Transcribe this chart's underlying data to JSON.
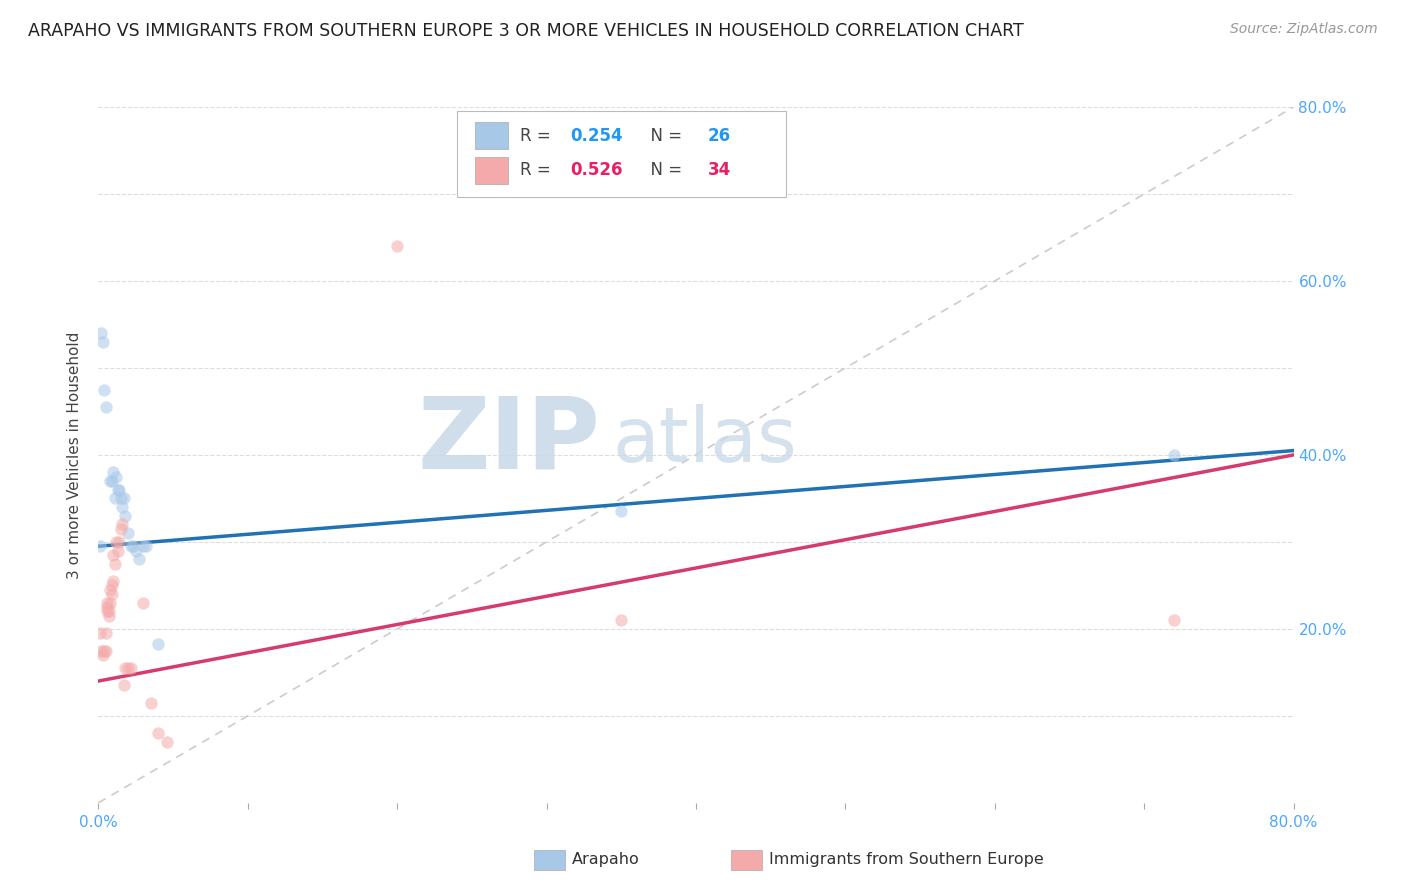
{
  "title": "ARAPAHO VS IMMIGRANTS FROM SOUTHERN EUROPE 3 OR MORE VEHICLES IN HOUSEHOLD CORRELATION CHART",
  "source": "Source: ZipAtlas.com",
  "ylabel": "3 or more Vehicles in Household",
  "xlim": [
    0.0,
    0.8
  ],
  "ylim": [
    0.0,
    0.8
  ],
  "legend_r1": "R = 0.254",
  "legend_n1": "N = 26",
  "legend_r2": "R = 0.526",
  "legend_n2": "N = 34",
  "arapaho_points": [
    [
      0.001,
      0.295
    ],
    [
      0.002,
      0.54
    ],
    [
      0.003,
      0.53
    ],
    [
      0.004,
      0.475
    ],
    [
      0.005,
      0.455
    ],
    [
      0.008,
      0.37
    ],
    [
      0.009,
      0.37
    ],
    [
      0.01,
      0.38
    ],
    [
      0.011,
      0.35
    ],
    [
      0.012,
      0.375
    ],
    [
      0.013,
      0.36
    ],
    [
      0.014,
      0.36
    ],
    [
      0.015,
      0.35
    ],
    [
      0.016,
      0.34
    ],
    [
      0.017,
      0.35
    ],
    [
      0.018,
      0.33
    ],
    [
      0.02,
      0.31
    ],
    [
      0.022,
      0.295
    ],
    [
      0.023,
      0.295
    ],
    [
      0.025,
      0.29
    ],
    [
      0.027,
      0.28
    ],
    [
      0.03,
      0.295
    ],
    [
      0.032,
      0.295
    ],
    [
      0.04,
      0.183
    ],
    [
      0.35,
      0.335
    ],
    [
      0.72,
      0.4
    ]
  ],
  "immigrant_points": [
    [
      0.001,
      0.195
    ],
    [
      0.002,
      0.175
    ],
    [
      0.003,
      0.17
    ],
    [
      0.004,
      0.175
    ],
    [
      0.005,
      0.175
    ],
    [
      0.005,
      0.195
    ],
    [
      0.006,
      0.22
    ],
    [
      0.006,
      0.225
    ],
    [
      0.006,
      0.23
    ],
    [
      0.007,
      0.215
    ],
    [
      0.007,
      0.22
    ],
    [
      0.008,
      0.23
    ],
    [
      0.008,
      0.245
    ],
    [
      0.009,
      0.25
    ],
    [
      0.009,
      0.24
    ],
    [
      0.01,
      0.255
    ],
    [
      0.01,
      0.285
    ],
    [
      0.011,
      0.275
    ],
    [
      0.012,
      0.3
    ],
    [
      0.013,
      0.29
    ],
    [
      0.014,
      0.3
    ],
    [
      0.015,
      0.315
    ],
    [
      0.016,
      0.32
    ],
    [
      0.017,
      0.135
    ],
    [
      0.018,
      0.155
    ],
    [
      0.02,
      0.155
    ],
    [
      0.022,
      0.155
    ],
    [
      0.03,
      0.23
    ],
    [
      0.035,
      0.115
    ],
    [
      0.04,
      0.08
    ],
    [
      0.046,
      0.07
    ],
    [
      0.2,
      0.64
    ],
    [
      0.35,
      0.21
    ],
    [
      0.72,
      0.21
    ]
  ],
  "arapaho_line": [
    0.0,
    0.8,
    0.295,
    0.405
  ],
  "immigrant_line": [
    0.0,
    0.8,
    0.14,
    0.4
  ],
  "arapaho_line_color": "#2171b5",
  "immigrant_line_color": "#d63b6e",
  "diagonal_color": "#cccccc",
  "grid_color": "#dddddd",
  "dot_size": 80,
  "dot_alpha": 0.55,
  "arapaho_dot_color": "#a8c8e8",
  "immigrant_dot_color": "#f4aaaa",
  "background_color": "#ffffff",
  "watermark_zip": "ZIP",
  "watermark_atlas": "atlas",
  "watermark_color_zip": "#c8d8e8",
  "watermark_color_atlas": "#c8d8e8"
}
